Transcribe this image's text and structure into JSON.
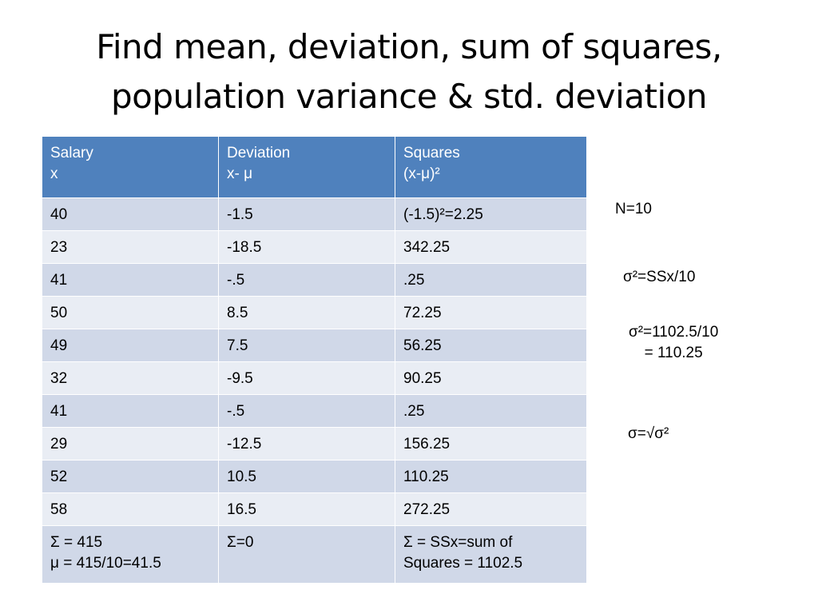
{
  "title": {
    "line1": "Find mean, deviation, sum of squares,",
    "line2": "population variance & std. deviation"
  },
  "table": {
    "headers": [
      {
        "line1": "Salary",
        "line2": "x"
      },
      {
        "line1": "Deviation",
        "line2": "x- μ"
      },
      {
        "line1": "Squares",
        "line2": "(x-μ)²"
      }
    ],
    "rows": [
      [
        "40",
        "-1.5",
        "(-1.5)²=2.25"
      ],
      [
        "23",
        "-18.5",
        "342.25"
      ],
      [
        "41",
        "-.5",
        ".25"
      ],
      [
        "50",
        "8.5",
        "72.25"
      ],
      [
        "49",
        "7.5",
        "56.25"
      ],
      [
        "32",
        "-9.5",
        "90.25"
      ],
      [
        "41",
        "-.5",
        ".25"
      ],
      [
        "29",
        "-12.5",
        "156.25"
      ],
      [
        "52",
        "10.5",
        "110.25"
      ],
      [
        "58",
        "16.5",
        "272.25"
      ]
    ],
    "totals": {
      "salary_line1": "Σ = 415",
      "salary_line2": "μ = 415/10=41.5",
      "deviation": "Σ=0",
      "squares_line1": "Σ = SSx=sum of",
      "squares_line2": "Squares = 1102.5"
    }
  },
  "notes": {
    "n": "N=10",
    "variance_formula": "σ²=SSx/10",
    "variance_calc_line1": "σ²=1102.5/10",
    "variance_calc_line2": "= 110.25",
    "std_dev": "σ=√σ²"
  }
}
